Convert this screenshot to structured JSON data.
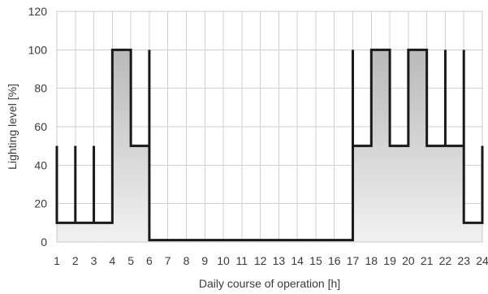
{
  "chart_data": {
    "type": "area",
    "xlabel": "Daily course of operation [h]",
    "ylabel": "Lighting level [%]",
    "xlim": [
      1,
      24
    ],
    "ylim": [
      0,
      120
    ],
    "x_ticks": [
      1,
      2,
      3,
      4,
      5,
      6,
      7,
      8,
      9,
      10,
      11,
      12,
      13,
      14,
      15,
      16,
      17,
      18,
      19,
      20,
      21,
      22,
      23,
      24
    ],
    "y_ticks": [
      0,
      20,
      40,
      60,
      80,
      100,
      120
    ],
    "grid": true,
    "series": [
      {
        "step": [
          {
            "x": 1,
            "y": 50
          },
          {
            "x": 1,
            "y": 10
          },
          {
            "x": 2,
            "y": 10
          },
          {
            "x": 2,
            "y": 50
          },
          {
            "x": 2,
            "y": 10
          },
          {
            "x": 3,
            "y": 10
          },
          {
            "x": 3,
            "y": 50
          },
          {
            "x": 3,
            "y": 10
          },
          {
            "x": 4,
            "y": 10
          },
          {
            "x": 4,
            "y": 100
          },
          {
            "x": 5,
            "y": 100
          },
          {
            "x": 5,
            "y": 50
          },
          {
            "x": 6,
            "y": 50
          },
          {
            "x": 6,
            "y": 100
          },
          {
            "x": 6,
            "y": 1
          },
          {
            "x": 17,
            "y": 1
          },
          {
            "x": 17,
            "y": 100
          },
          {
            "x": 17,
            "y": 50
          },
          {
            "x": 18,
            "y": 50
          },
          {
            "x": 18,
            "y": 100
          },
          {
            "x": 19,
            "y": 100
          },
          {
            "x": 19,
            "y": 50
          },
          {
            "x": 20,
            "y": 50
          },
          {
            "x": 20,
            "y": 100
          },
          {
            "x": 21,
            "y": 100
          },
          {
            "x": 21,
            "y": 50
          },
          {
            "x": 22,
            "y": 50
          },
          {
            "x": 22,
            "y": 100
          },
          {
            "x": 22,
            "y": 50
          },
          {
            "x": 23,
            "y": 50
          },
          {
            "x": 23,
            "y": 100
          },
          {
            "x": 23,
            "y": 10
          },
          {
            "x": 24,
            "y": 10
          },
          {
            "x": 24,
            "y": 50
          }
        ]
      }
    ]
  },
  "colors": {
    "line": "#1a1a1a",
    "fill_top": "#b9b9b9",
    "fill_bottom": "#f1f1f1",
    "grid": "#d0d0d0",
    "text": "#3a3a3a"
  }
}
